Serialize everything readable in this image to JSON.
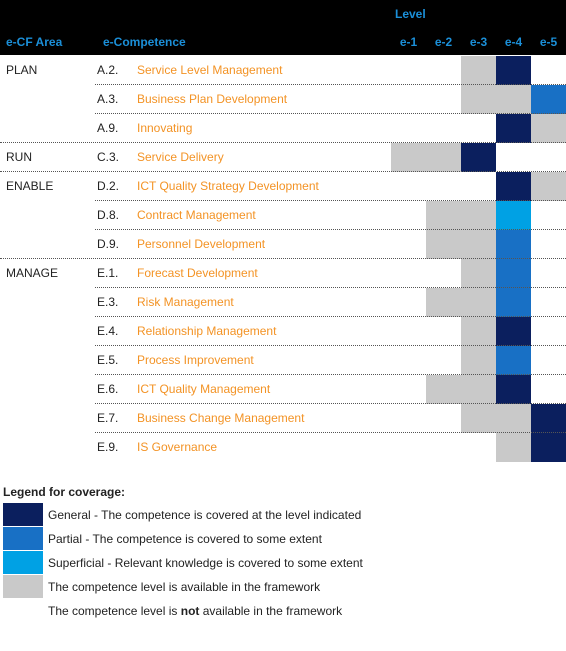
{
  "header": {
    "level": "Level",
    "area": "e-CF Area",
    "competence": "e-Competence",
    "levels": [
      "e-1",
      "e-2",
      "e-3",
      "e-4",
      "e-5"
    ]
  },
  "groups": [
    {
      "area": "PLAN",
      "rows": [
        {
          "code": "A.2.",
          "name": "Service Level Management",
          "coverage": [
            null,
            null,
            3,
            0,
            null
          ]
        },
        {
          "code": "A.3.",
          "name": "Business Plan Development",
          "coverage": [
            null,
            null,
            3,
            3,
            1
          ]
        },
        {
          "code": "A.9.",
          "name": "Innovating",
          "coverage": [
            null,
            null,
            null,
            0,
            3
          ]
        }
      ]
    },
    {
      "area": "RUN",
      "rows": [
        {
          "code": "C.3.",
          "name": "Service Delivery",
          "coverage": [
            3,
            3,
            0,
            null,
            null
          ]
        }
      ]
    },
    {
      "area": "ENABLE",
      "rows": [
        {
          "code": "D.2.",
          "name": "ICT Quality Strategy Development",
          "coverage": [
            null,
            null,
            null,
            0,
            3
          ]
        },
        {
          "code": "D.8.",
          "name": "Contract Management",
          "coverage": [
            null,
            3,
            3,
            2,
            null
          ]
        },
        {
          "code": "D.9.",
          "name": "Personnel Development",
          "coverage": [
            null,
            3,
            3,
            1,
            null
          ]
        }
      ]
    },
    {
      "area": "MANAGE",
      "rows": [
        {
          "code": "E.1.",
          "name": "Forecast Development",
          "coverage": [
            null,
            null,
            3,
            1,
            null
          ]
        },
        {
          "code": "E.3.",
          "name": "Risk Management",
          "coverage": [
            null,
            3,
            3,
            1,
            null
          ]
        },
        {
          "code": "E.4.",
          "name": "Relationship Management",
          "coverage": [
            null,
            null,
            3,
            0,
            null
          ]
        },
        {
          "code": "E.5.",
          "name": "Process Improvement",
          "coverage": [
            null,
            null,
            3,
            1,
            null
          ]
        },
        {
          "code": "E.6.",
          "name": "ICT Quality Management",
          "coverage": [
            null,
            3,
            3,
            0,
            null
          ]
        },
        {
          "code": "E.7.",
          "name": "Business Change Management",
          "coverage": [
            null,
            null,
            3,
            3,
            0
          ]
        },
        {
          "code": "E.9.",
          "name": "IS Governance",
          "coverage": [
            null,
            null,
            null,
            3,
            0
          ]
        }
      ]
    }
  ],
  "legend": {
    "title": "Legend for coverage:",
    "items": [
      {
        "color": "#0b1f5e",
        "text": "General - The competence is covered at the level indicated"
      },
      {
        "color": "#1870c5",
        "text": "Partial - The competence is covered to some extent"
      },
      {
        "color": "#00a1e4",
        "text": "Superficial - Relevant knowledge is covered to some extent"
      },
      {
        "color": "#c9c9c9",
        "text": "The competence level is available in the framework"
      },
      {
        "parts": [
          "The competence level is ",
          "not",
          " available in the framework"
        ]
      }
    ]
  }
}
